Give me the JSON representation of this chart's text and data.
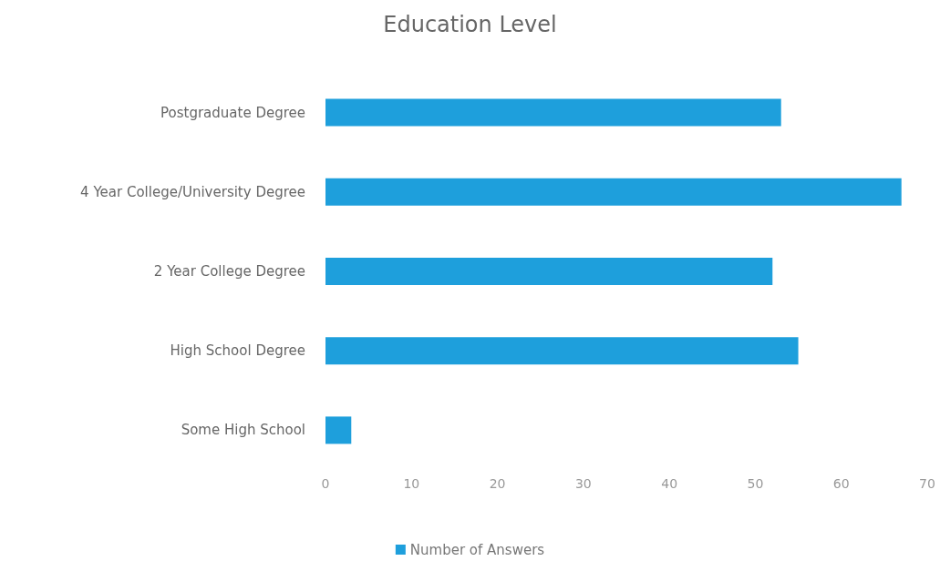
{
  "chart_data": {
    "type": "bar",
    "orientation": "horizontal",
    "title": "Education Level",
    "categories": [
      "Postgraduate Degree",
      "4 Year College/University Degree",
      "2 Year College Degree",
      "High School Degree",
      "Some High School"
    ],
    "series": [
      {
        "name": "Number of Answers",
        "color": "#1e9fdc",
        "values": [
          53,
          67,
          52,
          55,
          3
        ]
      }
    ],
    "xlim": [
      0,
      70
    ],
    "xticks": [
      0,
      10,
      20,
      30,
      40,
      50,
      60,
      70
    ],
    "grid": false,
    "legend": "bottom"
  }
}
